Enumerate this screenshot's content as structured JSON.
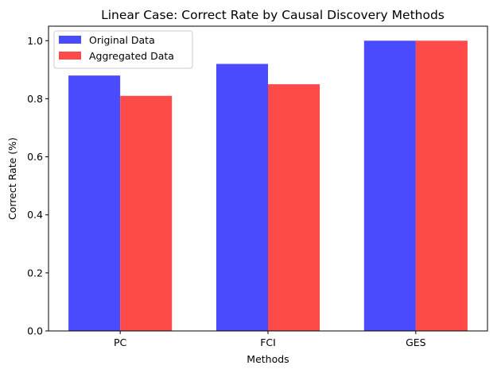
{
  "chart_data": {
    "type": "bar",
    "title": "Linear Case: Correct Rate by Causal Discovery Methods",
    "xlabel": "Methods",
    "ylabel": "Correct Rate (%)",
    "categories": [
      "PC",
      "FCI",
      "GES"
    ],
    "series": [
      {
        "name": "Original Data",
        "values": [
          0.88,
          0.92,
          1.0
        ],
        "color": "#4a4aff"
      },
      {
        "name": "Aggregated Data",
        "values": [
          0.81,
          0.85,
          1.0
        ],
        "color": "#ff4a4a"
      }
    ],
    "ylim": [
      0,
      1.05
    ],
    "yticks": [
      "0.0",
      "0.2",
      "0.4",
      "0.6",
      "0.8",
      "1.0"
    ],
    "legend_position": "top-left",
    "grid": false
  }
}
